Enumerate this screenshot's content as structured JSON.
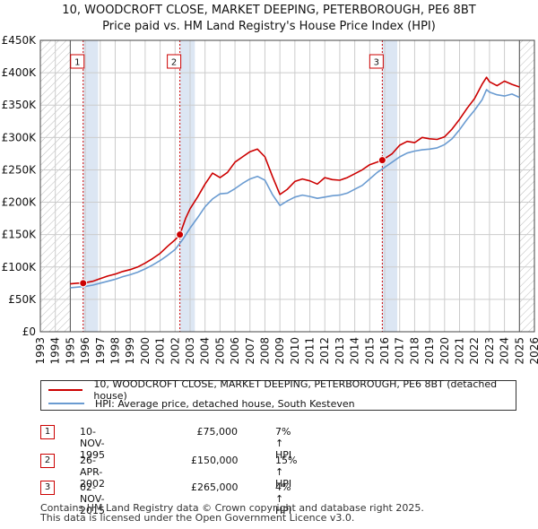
{
  "title_line1": "10, WOODCROFT CLOSE, MARKET DEEPING, PETERBOROUGH, PE6 8BT",
  "title_line2": "Price paid vs. HM Land Registry's House Price Index (HPI)",
  "colors": {
    "property": "#cc0000",
    "hpi": "#6a9bd1",
    "shade": "#dce6f3",
    "grid": "#cccccc"
  },
  "chart_data": {
    "type": "line",
    "title": "Price paid vs. HM Land Registry's House Price Index (HPI)",
    "xlim": [
      1993,
      2026
    ],
    "ylim": [
      0,
      450000
    ],
    "yticks": [
      0,
      50000,
      100000,
      150000,
      200000,
      250000,
      300000,
      350000,
      400000,
      450000
    ],
    "ytick_labels": [
      "£0",
      "£50K",
      "£100K",
      "£150K",
      "£200K",
      "£250K",
      "£300K",
      "£350K",
      "£400K",
      "£450K"
    ],
    "xticks": [
      1993,
      1994,
      1995,
      1996,
      1997,
      1998,
      1999,
      2000,
      2001,
      2002,
      2003,
      2004,
      2005,
      2006,
      2007,
      2008,
      2009,
      2010,
      2011,
      2012,
      2013,
      2014,
      2015,
      2016,
      2017,
      2018,
      2019,
      2020,
      2021,
      2022,
      2023,
      2024,
      2025,
      2026
    ],
    "hatched_ranges": [
      [
        1993,
        1995.0
      ],
      [
        2025.0,
        2026
      ]
    ],
    "series": [
      {
        "name": "10, WOODCROFT CLOSE, MARKET DEEPING, PETERBOROUGH, PE6 8BT (detached house)",
        "x": [
          1995.0,
          1995.5,
          1995.86,
          1996.5,
          1997.0,
          1997.5,
          1998.0,
          1998.5,
          1999.0,
          1999.5,
          2000.0,
          2000.5,
          2001.0,
          2001.5,
          2002.0,
          2002.32,
          2002.7,
          2003.0,
          2003.5,
          2004.0,
          2004.5,
          2005.0,
          2005.5,
          2006.0,
          2006.5,
          2007.0,
          2007.5,
          2008.0,
          2008.5,
          2009.0,
          2009.5,
          2010.0,
          2010.5,
          2011.0,
          2011.5,
          2012.0,
          2012.5,
          2013.0,
          2013.5,
          2014.0,
          2014.5,
          2015.0,
          2015.5,
          2015.84,
          2016.5,
          2017.0,
          2017.5,
          2018.0,
          2018.5,
          2019.0,
          2019.5,
          2020.0,
          2020.5,
          2021.0,
          2021.5,
          2022.0,
          2022.5,
          2022.8,
          2023.0,
          2023.5,
          2024.0,
          2024.5,
          2025.0
        ],
        "values": [
          74000,
          75000,
          75000,
          78000,
          82000,
          86000,
          89000,
          93000,
          96000,
          100000,
          106000,
          113000,
          121000,
          132000,
          142000,
          150000,
          175000,
          190000,
          208000,
          228000,
          245000,
          238000,
          246000,
          262000,
          270000,
          278000,
          282000,
          270000,
          240000,
          212000,
          220000,
          232000,
          236000,
          233000,
          228000,
          238000,
          235000,
          234000,
          238000,
          244000,
          250000,
          258000,
          262000,
          265000,
          275000,
          288000,
          294000,
          292000,
          300000,
          298000,
          297000,
          301000,
          313000,
          328000,
          345000,
          360000,
          382000,
          393000,
          386000,
          380000,
          387000,
          382000,
          378000
        ]
      },
      {
        "name": "HPI: Average price, detached house, South Kesteven",
        "x": [
          1995.0,
          1995.5,
          1996.0,
          1996.5,
          1997.0,
          1997.5,
          1998.0,
          1998.5,
          1999.0,
          1999.5,
          2000.0,
          2000.5,
          2001.0,
          2001.5,
          2002.0,
          2002.5,
          2003.0,
          2003.5,
          2004.0,
          2004.5,
          2005.0,
          2005.5,
          2006.0,
          2006.5,
          2007.0,
          2007.5,
          2008.0,
          2008.5,
          2009.0,
          2009.5,
          2010.0,
          2010.5,
          2011.0,
          2011.5,
          2012.0,
          2012.5,
          2013.0,
          2013.5,
          2014.0,
          2014.5,
          2015.0,
          2015.5,
          2016.0,
          2016.5,
          2017.0,
          2017.5,
          2018.0,
          2018.5,
          2019.0,
          2019.5,
          2020.0,
          2020.5,
          2021.0,
          2021.5,
          2022.0,
          2022.5,
          2022.8,
          2023.0,
          2023.5,
          2024.0,
          2024.5,
          2025.0
        ],
        "values": [
          68000,
          69000,
          70000,
          72000,
          75000,
          78000,
          81000,
          85000,
          88000,
          92000,
          97000,
          103000,
          110000,
          118000,
          127000,
          142000,
          160000,
          176000,
          193000,
          205000,
          213000,
          214000,
          221000,
          229000,
          236000,
          240000,
          234000,
          212000,
          195000,
          202000,
          208000,
          211000,
          209000,
          206000,
          208000,
          210000,
          211000,
          214000,
          220000,
          226000,
          236000,
          246000,
          254000,
          262000,
          270000,
          276000,
          279000,
          281000,
          282000,
          284000,
          289000,
          298000,
          312000,
          328000,
          342000,
          358000,
          374000,
          370000,
          366000,
          364000,
          367000,
          362000
        ]
      }
    ],
    "markers": [
      {
        "label": "1",
        "x": 1995.86,
        "y": 75000
      },
      {
        "label": "2",
        "x": 2002.32,
        "y": 150000
      },
      {
        "label": "3",
        "x": 2015.84,
        "y": 265000
      }
    ]
  },
  "legend": {
    "property_label": "10, WOODCROFT CLOSE, MARKET DEEPING, PETERBOROUGH, PE6 8BT (detached house)",
    "hpi_label": "HPI: Average price, detached house, South Kesteven"
  },
  "transactions": [
    {
      "num": "1",
      "date": "10-NOV-1995",
      "price": "£75,000",
      "hpi": "7% ↑ HPI"
    },
    {
      "num": "2",
      "date": "26-APR-2002",
      "price": "£150,000",
      "hpi": "15% ↑ HPI"
    },
    {
      "num": "3",
      "date": "02-NOV-2015",
      "price": "£265,000",
      "hpi": "4% ↑ HPI"
    }
  ],
  "footer": {
    "line1": "Contains HM Land Registry data © Crown copyright and database right 2025.",
    "line2": "This data is licensed under the Open Government Licence v3.0."
  }
}
